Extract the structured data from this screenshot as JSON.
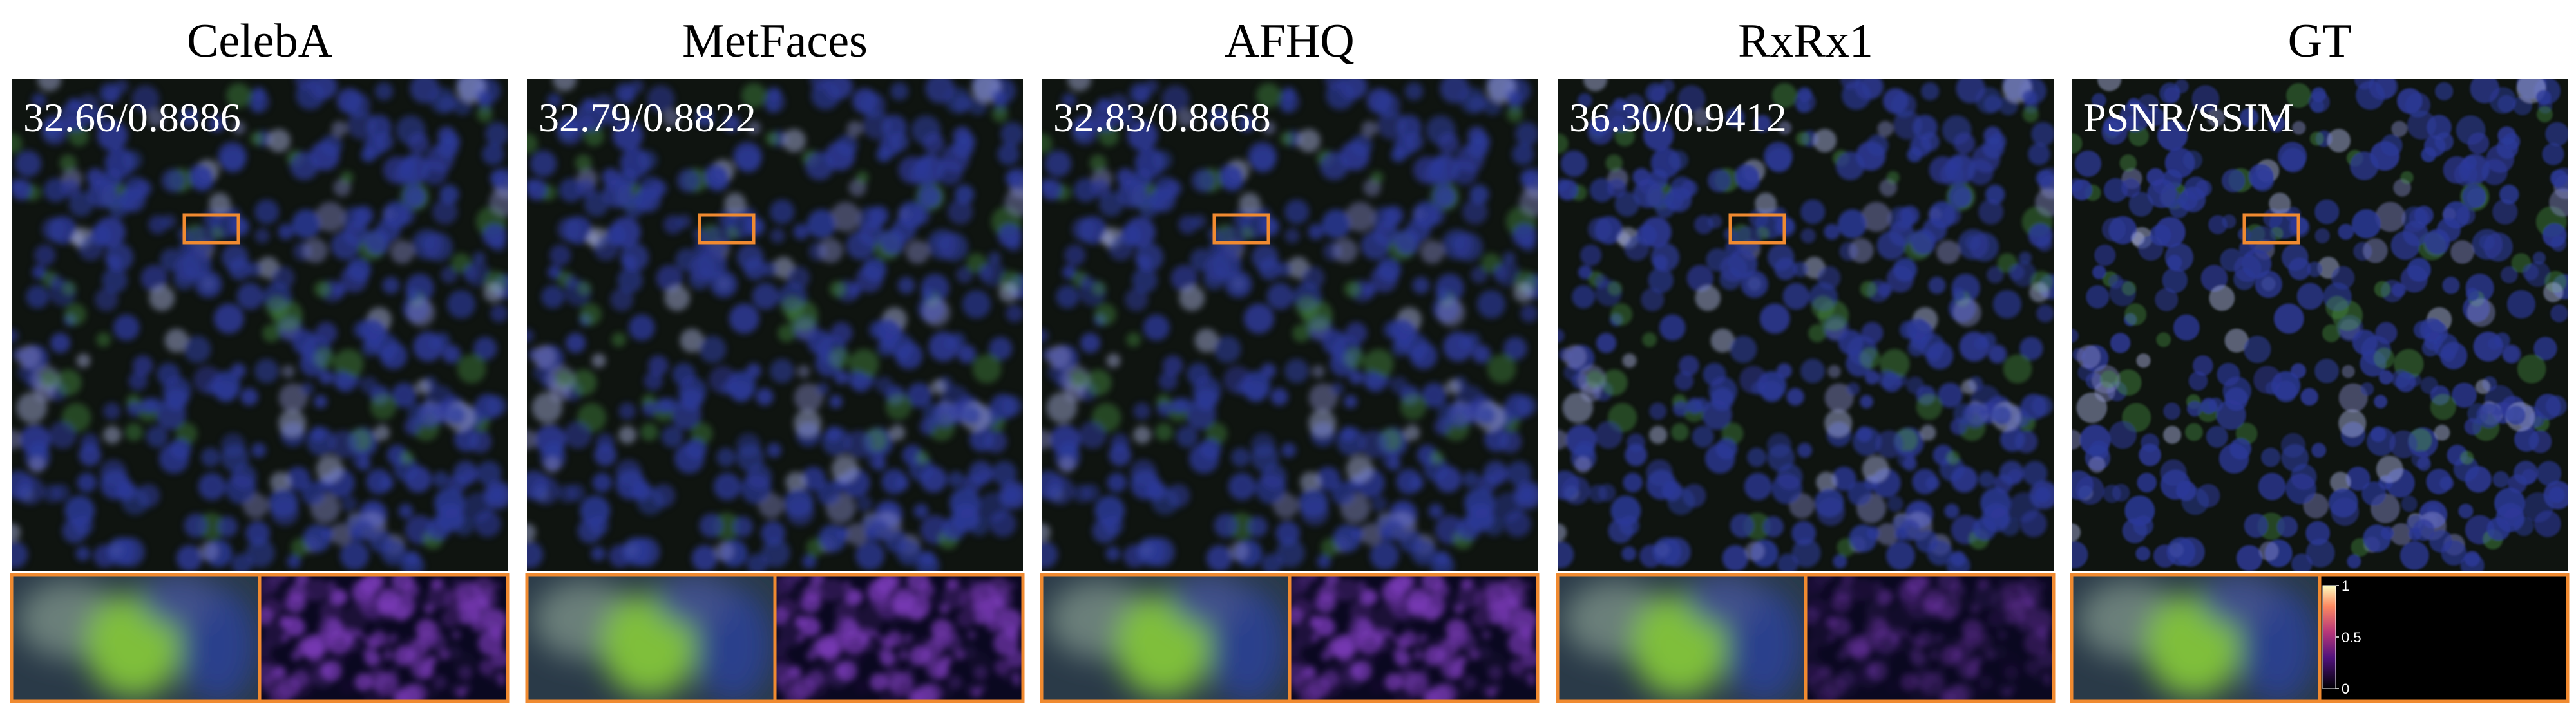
{
  "panels": [
    {
      "title": "CelebA",
      "metric": "32.66/0.8886"
    },
    {
      "title": "MetFaces",
      "metric": "32.79/0.8822"
    },
    {
      "title": "AFHQ",
      "metric": "32.83/0.8868"
    },
    {
      "title": "RxRx1",
      "metric": "36.30/0.9412"
    },
    {
      "title": "GT",
      "metric": "PSNR/SSIM"
    }
  ],
  "colorbar": {
    "lim": [
      0,
      1
    ],
    "ticks": [
      1,
      0.5,
      0
    ]
  }
}
